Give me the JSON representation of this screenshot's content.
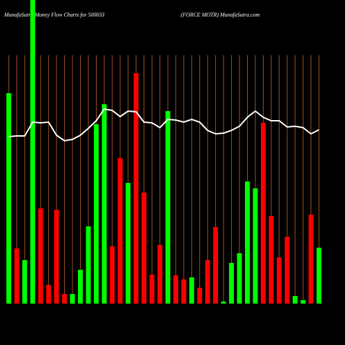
{
  "chart_data": {
    "type": "bar",
    "title": "MunafaSutra  Money  Flow  Charts for 500033",
    "subtitle": "(FORCE MOTR) MunafaSutra.com",
    "categories": [
      null,
      null,
      null,
      null,
      null,
      null,
      null,
      null,
      null,
      null,
      null,
      null,
      null,
      null,
      null,
      null,
      null,
      null,
      null,
      null,
      null,
      null,
      null,
      null,
      null,
      null,
      null,
      null,
      null,
      null,
      null,
      null,
      null,
      null,
      null,
      null,
      null,
      null,
      null,
      null
    ],
    "values": [
      305,
      80,
      63,
      440,
      138,
      27,
      136,
      14,
      14,
      49,
      112,
      260,
      289,
      83,
      211,
      175,
      334,
      161,
      42,
      85,
      279,
      41,
      35,
      38,
      23,
      63,
      111,
      3,
      59,
      73,
      177,
      167,
      262,
      127,
      67,
      97,
      11,
      5,
      129,
      81
    ],
    "bar_colors": [
      "#00ff00",
      "#ff0000",
      "#00ff00",
      "#00ff00",
      "#ff0000",
      "#ff0000",
      "#ff0000",
      "#ff0000",
      "#00ff00",
      "#00ff00",
      "#00ff00",
      "#00ff00",
      "#00ff00",
      "#ff0000",
      "#ff0000",
      "#00ff00",
      "#ff0000",
      "#ff0000",
      "#ff0000",
      "#ff0000",
      "#00ff00",
      "#ff0000",
      "#ff0000",
      "#00ff00",
      "#ff0000",
      "#ff0000",
      "#ff0000",
      "#00ff00",
      "#00ff00",
      "#00ff00",
      "#00ff00",
      "#00ff00",
      "#ff0000",
      "#ff0000",
      "#ff0000",
      "#ff0000",
      "#00ff00",
      "#00ff00",
      "#ff0000",
      "#00ff00"
    ],
    "line_values": [
      242,
      243,
      243,
      263,
      262,
      263,
      244,
      236,
      238,
      244,
      254,
      265,
      282,
      280,
      271,
      279,
      278,
      263,
      262,
      255,
      267,
      266,
      263,
      267,
      263,
      251,
      246,
      247,
      251,
      257,
      270,
      279,
      270,
      265,
      265,
      256,
      257,
      255,
      246,
      252
    ],
    "line_color": "#ffffff",
    "ylim": [
      0,
      440
    ],
    "grid_color": "#a0521c"
  }
}
